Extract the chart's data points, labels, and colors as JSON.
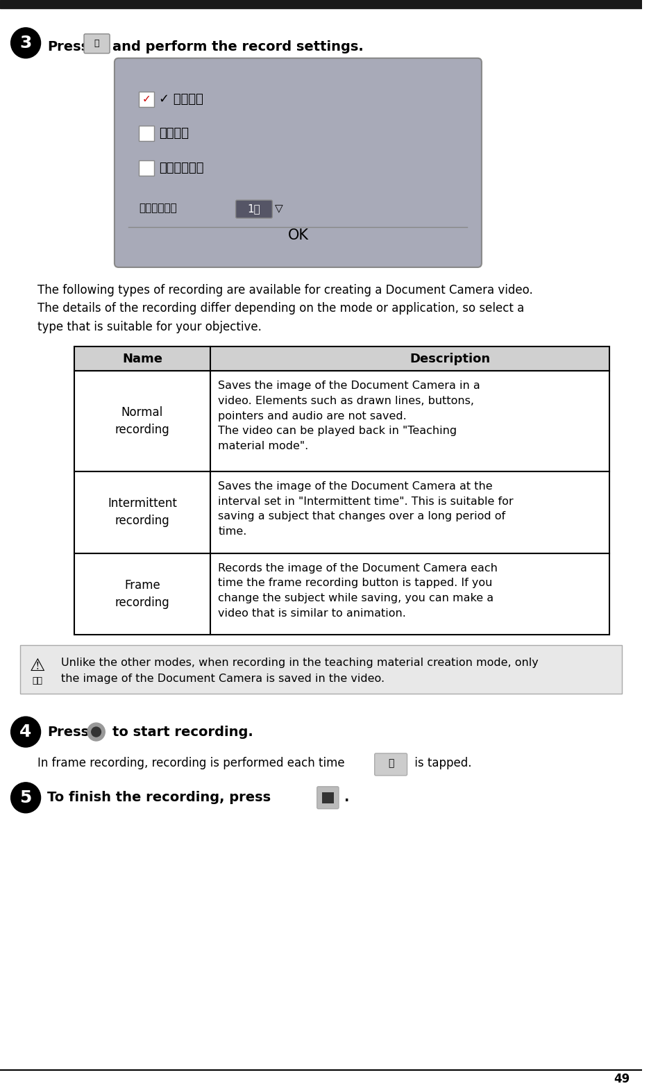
{
  "page_number": "49",
  "bg_color": "#ffffff",
  "step3_number": "❸",
  "step3_text": " Press      and perform the record settings.",
  "step4_number": "❹",
  "step4_text": " Press      to start recording.",
  "step5_number": "❺",
  "step5_text": " To finish the recording, press      .",
  "frame_text": "In frame recording, recording is performed each time      is tapped.",
  "intro_text": "The following types of recording are available for creating a Document Camera video.\nThe details of the recording differ depending on the mode or application, so select a\ntype that is suitable for your objective.",
  "note_text": "Unlike the other modes, when recording in the teaching material creation mode, only\nthe image of the Document Camera is saved in the video.",
  "dialog_bg": "#a8aab8",
  "dialog_items": [
    "✓ 通常録画",
    "間欠録画",
    "コマ撑り録画"
  ],
  "dialog_footer": "間欠録画時間   1分 ▽",
  "dialog_ok": "OK",
  "table_header": [
    "Name",
    "Description"
  ],
  "table_rows": [
    [
      "Normal\nrecording",
      "Saves the image of the Document Camera in a\nvideo. Elements such as drawn lines, buttons,\npointers and audio are not saved.\nThe video can be played back in \"Teaching\nmaterial mode\"."
    ],
    [
      "Intermittent\nrecording",
      "Saves the image of the Document Camera at the\ninterval set in \"Intermittent time\". This is suitable for\nsaving a subject that changes over a long period of\ntime."
    ],
    [
      "Frame\nrecording",
      "Records the image of the Document Camera each\ntime the frame recording button is tapped. If you\nchange the subject while saving, you can make a\nvideo that is similar to animation."
    ]
  ],
  "header_bg": "#d0d0d0",
  "note_bg": "#e8e8e8"
}
